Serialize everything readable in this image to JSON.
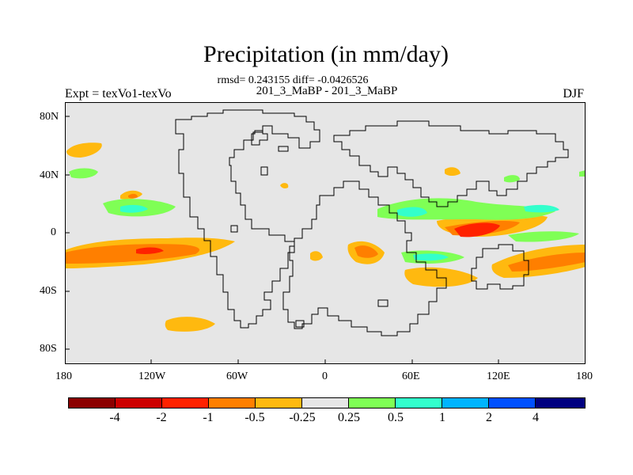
{
  "header": {
    "title": "Precipitation (in mm/day)",
    "subtitle": "rmsd= 0.243155 diff= -0.0426526",
    "case_line": "201_3_MaBP - 201_3_MaBP",
    "left_label": "Expt = texVo1-texVo",
    "right_label": "DJF"
  },
  "axes": {
    "lat_ticks": [
      "80N",
      "40N",
      "0",
      "40S",
      "80S"
    ],
    "lon_ticks": [
      "180",
      "120W",
      "60W",
      "0",
      "60E",
      "120E",
      "180"
    ]
  },
  "colorbar": {
    "labels": [
      "-4",
      "-2",
      "-1",
      "-0.5",
      "-0.25",
      "0.25",
      "0.5",
      "1",
      "2",
      "4"
    ],
    "colors": [
      "#8b0000",
      "#cc0000",
      "#ff2200",
      "#ff7f00",
      "#ffb90f",
      "#e6e6e6",
      "#7fff55",
      "#33ffcc",
      "#00b4ff",
      "#0050ff",
      "#000080"
    ]
  },
  "map": {
    "background_color": "#e6e6e6",
    "coastline_color": "#000000"
  }
}
